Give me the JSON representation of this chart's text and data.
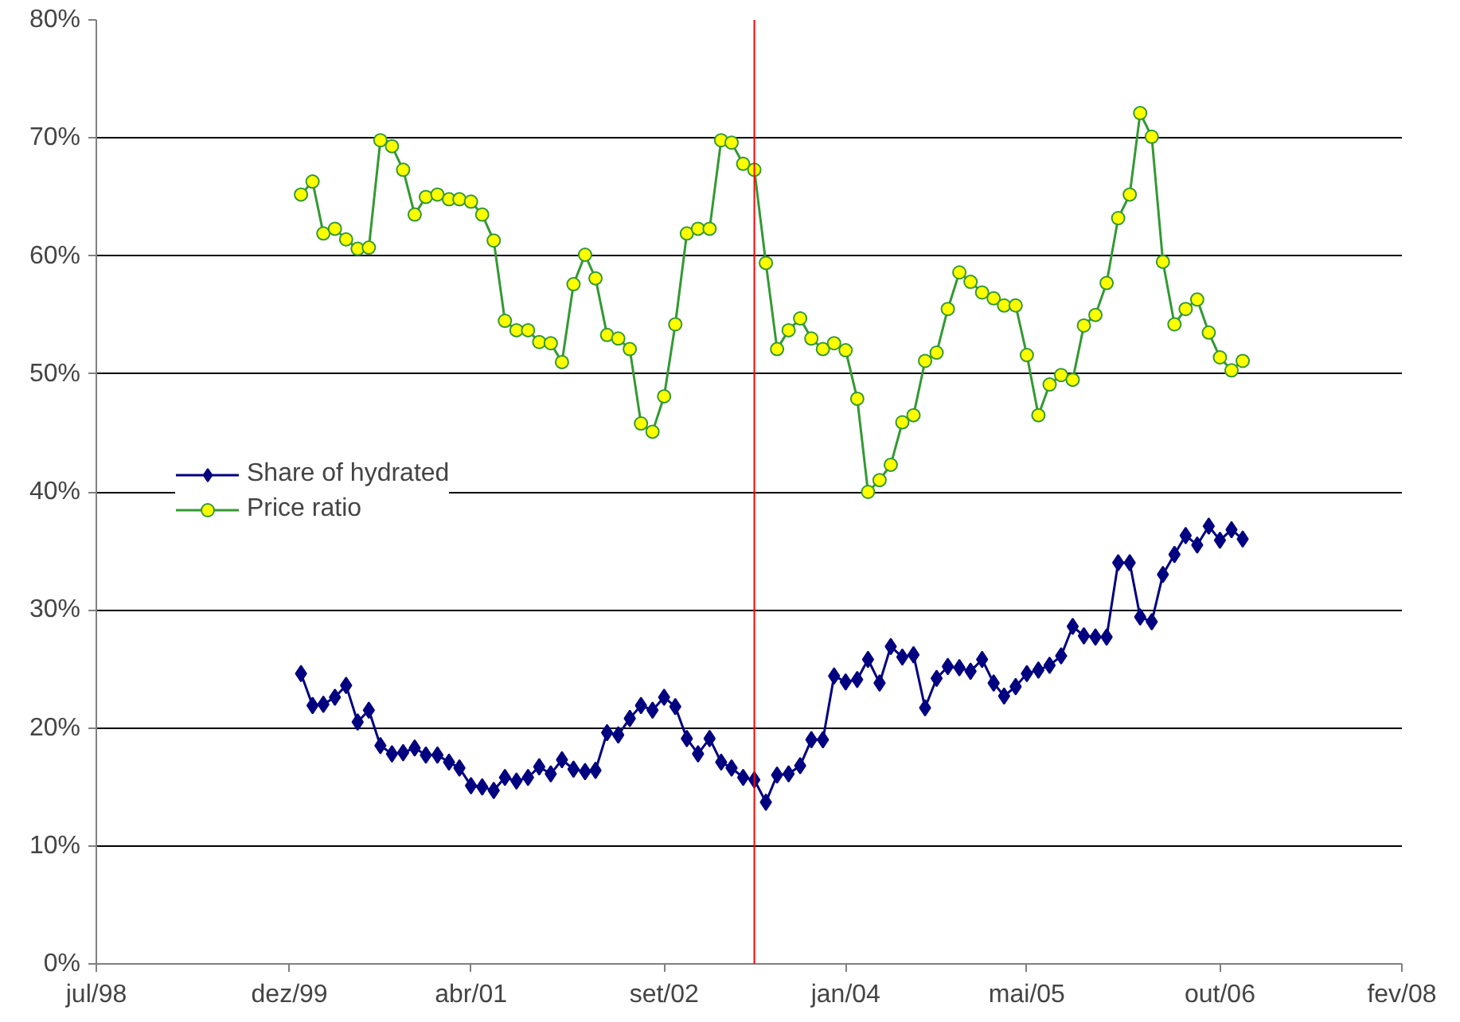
{
  "chart_data": {
    "type": "line",
    "x": [
      "2000-01",
      "2000-02",
      "2000-03",
      "2000-04",
      "2000-05",
      "2000-06",
      "2000-07",
      "2000-08",
      "2000-09",
      "2000-10",
      "2000-11",
      "2000-12",
      "2001-01",
      "2001-02",
      "2001-03",
      "2001-04",
      "2001-05",
      "2001-06",
      "2001-07",
      "2001-08",
      "2001-09",
      "2001-10",
      "2001-11",
      "2001-12",
      "2002-01",
      "2002-02",
      "2002-03",
      "2002-04",
      "2002-05",
      "2002-06",
      "2002-07",
      "2002-08",
      "2002-09",
      "2002-10",
      "2002-11",
      "2002-12",
      "2003-01",
      "2003-02",
      "2003-03",
      "2003-04",
      "2003-05",
      "2003-06",
      "2003-07",
      "2003-08",
      "2003-09",
      "2003-10",
      "2003-11",
      "2003-12",
      "2004-01",
      "2004-02",
      "2004-03",
      "2004-04",
      "2004-05",
      "2004-06",
      "2004-07",
      "2004-08",
      "2004-09",
      "2004-10",
      "2004-11",
      "2004-12",
      "2005-01",
      "2005-02",
      "2005-03",
      "2005-04",
      "2005-05",
      "2005-06",
      "2005-07",
      "2005-08",
      "2005-09",
      "2005-10",
      "2005-11",
      "2005-12",
      "2006-01",
      "2006-02",
      "2006-03",
      "2006-04",
      "2006-05",
      "2006-06",
      "2006-07",
      "2006-08",
      "2006-09",
      "2006-10",
      "2006-11",
      "2006-12"
    ],
    "series": [
      {
        "name": "Share of hydrated",
        "color": "#000080",
        "marker": "diamond",
        "values": [
          24.6,
          21.9,
          22.0,
          22.6,
          23.6,
          20.5,
          21.5,
          18.5,
          17.8,
          17.9,
          18.3,
          17.7,
          17.7,
          17.1,
          16.6,
          15.1,
          15.0,
          14.7,
          15.8,
          15.5,
          15.8,
          16.7,
          16.1,
          17.3,
          16.5,
          16.3,
          16.4,
          19.6,
          19.4,
          20.8,
          21.9,
          21.5,
          22.6,
          21.8,
          19.1,
          17.8,
          19.1,
          17.1,
          16.6,
          15.8,
          15.6,
          13.7,
          16.0,
          16.1,
          16.8,
          19.0,
          19.0,
          24.4,
          23.9,
          24.1,
          25.8,
          23.8,
          26.9,
          26.0,
          26.2,
          21.7,
          24.2,
          25.2,
          25.1,
          24.8,
          25.8,
          23.8,
          22.7,
          23.5,
          24.6,
          24.9,
          25.3,
          26.1,
          28.6,
          27.8,
          27.7,
          27.7,
          34.0,
          34.0,
          29.4,
          29.0,
          33.0,
          34.7,
          36.3,
          35.5,
          37.1,
          35.9,
          36.8,
          36.0
        ]
      },
      {
        "name": "Price ratio",
        "color": "#339933",
        "marker": "circle",
        "values": [
          65.2,
          66.3,
          61.9,
          62.3,
          61.4,
          60.6,
          60.7,
          69.8,
          69.3,
          67.3,
          63.5,
          65.0,
          65.2,
          64.8,
          64.8,
          64.6,
          63.5,
          61.3,
          54.5,
          53.7,
          53.7,
          52.7,
          52.6,
          51.0,
          57.6,
          60.1,
          58.1,
          53.3,
          53.0,
          52.1,
          45.8,
          45.1,
          48.1,
          54.2,
          61.9,
          62.3,
          62.3,
          69.8,
          69.6,
          67.8,
          67.3,
          59.4,
          52.1,
          53.7,
          54.7,
          53.0,
          52.1,
          52.6,
          52.0,
          47.9,
          40.0,
          41.0,
          42.3,
          45.9,
          46.5,
          51.1,
          51.8,
          55.5,
          58.6,
          57.8,
          56.9,
          56.4,
          55.8,
          55.8,
          51.6,
          46.5,
          49.1,
          49.9,
          49.5,
          54.1,
          55.0,
          57.7,
          63.2,
          65.2,
          72.1,
          70.1,
          59.5,
          54.2,
          55.5,
          56.3,
          53.5,
          51.4,
          50.3,
          51.1
        ]
      }
    ],
    "xlim": [
      "1998-07",
      "2008-02"
    ],
    "xticks": [
      {
        "value": "1998-07",
        "label": "jul/98"
      },
      {
        "value": "1999-12",
        "label": "dez/99"
      },
      {
        "value": "2001-04",
        "label": "abr/01"
      },
      {
        "value": "2002-09",
        "label": "set/02"
      },
      {
        "value": "2004-01",
        "label": "jan/04"
      },
      {
        "value": "2005-05",
        "label": "mai/05"
      },
      {
        "value": "2006-10",
        "label": "out/06"
      },
      {
        "value": "2008-02",
        "label": "fev/08"
      }
    ],
    "ylim": [
      0,
      80
    ],
    "yticks": [
      {
        "value": 0,
        "label": "0%"
      },
      {
        "value": 10,
        "label": "10%"
      },
      {
        "value": 20,
        "label": "20%"
      },
      {
        "value": 30,
        "label": "30%"
      },
      {
        "value": 40,
        "label": "40%"
      },
      {
        "value": 50,
        "label": "50%"
      },
      {
        "value": 60,
        "label": "60%"
      },
      {
        "value": 70,
        "label": "70%"
      },
      {
        "value": 80,
        "label": "80%"
      }
    ],
    "ref_lines": [
      {
        "axis": "x",
        "value": "2003-05",
        "color": "#ff0000"
      }
    ],
    "grid": "y",
    "legend": "left"
  }
}
